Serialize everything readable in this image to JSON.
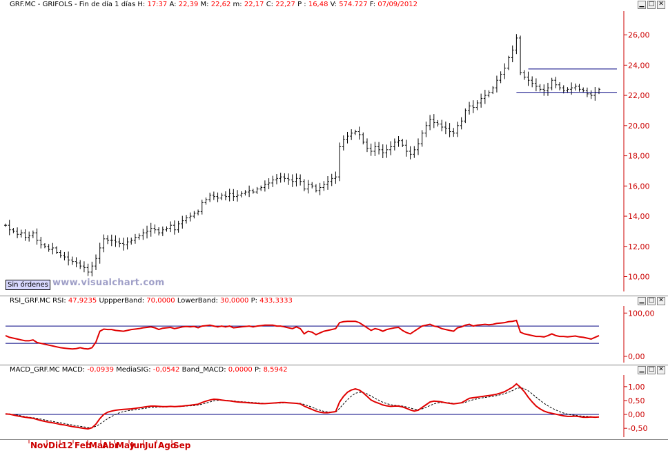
{
  "main_header": {
    "symbol": "GRF.MC - GRIFOLS - Fin de día 1 días",
    "h_label": "H:",
    "h_value": "17:37",
    "a_label": "A:",
    "a_value": "22,39",
    "m_label": "M:",
    "m_value": "22,62",
    "mi_label": "m:",
    "mi_value": "22,17",
    "c_label": "C:",
    "c_value": "22,27",
    "p_label": "P :",
    "p_value": "16,48",
    "v_label": "V:",
    "v_value": "574.727",
    "f_label": "F:",
    "f_value": "07/09/2012"
  },
  "rsi_header": {
    "name": "RSI_GRF.MC",
    "rsi_label": "RSI:",
    "rsi_value": "47,9235",
    "upper_label": "UppperBand:",
    "upper_value": "70,0000",
    "lower_label": "LowerBand:",
    "lower_value": "30,0000",
    "p_label": "P:",
    "p_value": "433,3333"
  },
  "macd_header": {
    "name": "MACD_GRF.MC",
    "macd_label": "MACD:",
    "macd_value": "-0,0939",
    "sig_label": "MediaSIG:",
    "sig_value": "-0,0542",
    "band_label": "Band_MACD:",
    "band_value": "0,0000",
    "p_label": "P:",
    "p_value": "8,5942"
  },
  "window_buttons": [
    "▁",
    "□",
    "✕"
  ],
  "status_button": "Sin órdenes",
  "watermark": "www.visualchart.com",
  "months": [
    "Nov",
    "Dic",
    "12",
    "Feb",
    "Mar",
    "Abr",
    "May",
    "Jun",
    "Jul",
    "Ago",
    "Sep"
  ],
  "colors": {
    "axis": "#cc0000",
    "rsi_line": "#e00000",
    "macd_line": "#e00000",
    "band": "#000080",
    "bars": "#000000"
  },
  "chart_data": [
    {
      "type": "ohlc",
      "title": "GRF.MC - GRIFOLS",
      "ylim": [
        9.2,
        27.4
      ],
      "yticks": [
        "10,00",
        "12,00",
        "14,00",
        "16,00",
        "18,00",
        "20,00",
        "22,00",
        "24,00",
        "26,00"
      ],
      "ytick_values": [
        10,
        12,
        14,
        16,
        18,
        20,
        22,
        24,
        26
      ],
      "close_series": [
        13.4,
        13.1,
        13.0,
        12.8,
        12.9,
        12.6,
        12.7,
        12.9,
        12.4,
        12.1,
        12.0,
        11.8,
        11.9,
        11.6,
        11.4,
        11.3,
        11.1,
        11.0,
        10.9,
        10.7,
        10.6,
        10.3,
        10.7,
        11.2,
        11.9,
        12.5,
        12.4,
        12.4,
        12.3,
        12.2,
        12.1,
        12.3,
        12.4,
        12.6,
        12.7,
        12.9,
        13.0,
        13.2,
        13.1,
        12.9,
        13.1,
        13.2,
        13.4,
        13.1,
        13.5,
        13.7,
        13.9,
        14.0,
        14.2,
        14.3,
        14.9,
        15.1,
        15.4,
        15.3,
        15.2,
        15.4,
        15.3,
        15.5,
        15.3,
        15.4,
        15.5,
        15.6,
        15.7,
        15.6,
        15.8,
        15.9,
        16.1,
        16.2,
        16.4,
        16.5,
        16.6,
        16.5,
        16.4,
        16.3,
        16.5,
        16.3,
        15.8,
        16.1,
        16.0,
        15.7,
        15.9,
        16.1,
        16.3,
        16.5,
        16.6,
        18.6,
        19.1,
        19.3,
        19.5,
        19.6,
        19.4,
        18.9,
        18.5,
        18.3,
        18.6,
        18.4,
        18.2,
        18.4,
        18.6,
        18.9,
        19.0,
        18.7,
        18.3,
        18.1,
        18.4,
        18.8,
        19.5,
        20.0,
        20.4,
        20.2,
        20.1,
        19.9,
        19.8,
        19.6,
        19.5,
        20.0,
        20.3,
        21.0,
        21.3,
        21.2,
        21.5,
        21.8,
        22.0,
        22.2,
        22.5,
        23.0,
        23.4,
        23.8,
        24.5,
        25.0,
        25.8,
        23.5,
        23.2,
        23.0,
        22.8,
        22.6,
        22.4,
        22.3,
        22.5,
        23.0,
        22.7,
        22.5,
        22.3,
        22.4,
        22.5,
        22.6,
        22.4,
        22.3,
        22.1,
        22.0,
        22.2,
        22.4
      ],
      "resistance_lines": [
        23.75,
        22.2
      ]
    },
    {
      "type": "line",
      "title": "RSI_GRF.MC",
      "ylim": [
        -8,
        110
      ],
      "yticks": [
        "100,00",
        "0,00"
      ],
      "ytick_values": [
        100,
        0
      ],
      "bands": [
        70,
        30
      ],
      "series": [
        {
          "name": "RSI",
          "values": [
            48,
            44,
            42,
            40,
            38,
            36,
            36,
            38,
            32,
            30,
            28,
            26,
            24,
            22,
            20,
            19,
            18,
            17,
            18,
            20,
            18,
            17,
            20,
            33,
            58,
            63,
            62,
            62,
            60,
            59,
            58,
            60,
            62,
            63,
            64,
            66,
            67,
            68,
            66,
            62,
            65,
            66,
            67,
            64,
            66,
            68,
            69,
            68,
            69,
            66,
            70,
            71,
            72,
            70,
            68,
            70,
            68,
            70,
            66,
            67,
            68,
            69,
            70,
            68,
            70,
            71,
            72,
            72,
            72,
            70,
            70,
            68,
            66,
            64,
            68,
            64,
            52,
            58,
            56,
            50,
            54,
            58,
            60,
            62,
            64,
            78,
            80,
            81,
            81,
            81,
            78,
            72,
            66,
            60,
            64,
            62,
            58,
            62,
            64,
            66,
            67,
            60,
            55,
            52,
            58,
            64,
            70,
            72,
            74,
            70,
            68,
            64,
            62,
            60,
            58,
            66,
            68,
            72,
            74,
            70,
            72,
            73,
            74,
            73,
            74,
            76,
            77,
            78,
            80,
            81,
            83,
            56,
            52,
            50,
            48,
            46,
            46,
            45,
            48,
            52,
            48,
            46,
            46,
            45,
            46,
            47,
            45,
            44,
            42,
            40,
            44,
            48
          ]
        }
      ]
    },
    {
      "type": "line",
      "title": "MACD_GRF.MC",
      "ylim": [
        -0.72,
        1.32
      ],
      "yticks": [
        "1,00",
        "0,50",
        "0,00",
        "-0,50"
      ],
      "ytick_values": [
        1,
        0.5,
        0,
        -0.5
      ],
      "bands": [
        0
      ],
      "series": [
        {
          "name": "MACD",
          "values": [
            0.02,
            0.01,
            -0.02,
            -0.05,
            -0.08,
            -0.1,
            -0.12,
            -0.14,
            -0.18,
            -0.22,
            -0.25,
            -0.28,
            -0.3,
            -0.33,
            -0.36,
            -0.38,
            -0.41,
            -0.44,
            -0.46,
            -0.48,
            -0.5,
            -0.52,
            -0.48,
            -0.35,
            -0.15,
            0.0,
            0.08,
            0.12,
            0.15,
            0.17,
            0.18,
            0.19,
            0.2,
            0.22,
            0.24,
            0.26,
            0.28,
            0.3,
            0.3,
            0.29,
            0.28,
            0.28,
            0.29,
            0.28,
            0.29,
            0.3,
            0.32,
            0.33,
            0.35,
            0.37,
            0.43,
            0.48,
            0.52,
            0.55,
            0.54,
            0.52,
            0.5,
            0.49,
            0.47,
            0.45,
            0.44,
            0.43,
            0.42,
            0.41,
            0.4,
            0.39,
            0.39,
            0.4,
            0.41,
            0.42,
            0.43,
            0.43,
            0.42,
            0.41,
            0.4,
            0.38,
            0.3,
            0.24,
            0.18,
            0.12,
            0.08,
            0.06,
            0.06,
            0.08,
            0.1,
            0.45,
            0.65,
            0.8,
            0.88,
            0.92,
            0.88,
            0.78,
            0.65,
            0.52,
            0.45,
            0.4,
            0.34,
            0.31,
            0.29,
            0.3,
            0.3,
            0.27,
            0.22,
            0.16,
            0.12,
            0.15,
            0.25,
            0.35,
            0.45,
            0.48,
            0.47,
            0.45,
            0.42,
            0.4,
            0.38,
            0.4,
            0.42,
            0.5,
            0.58,
            0.6,
            0.62,
            0.64,
            0.66,
            0.68,
            0.7,
            0.73,
            0.77,
            0.82,
            0.9,
            0.98,
            1.1,
            0.98,
            0.82,
            0.62,
            0.45,
            0.3,
            0.2,
            0.12,
            0.07,
            0.04,
            0.01,
            -0.02,
            -0.05,
            -0.07,
            -0.07,
            -0.06,
            -0.08,
            -0.1,
            -0.1,
            -0.09,
            -0.1,
            -0.09
          ]
        },
        {
          "name": "MediaSIG",
          "values": [
            0.03,
            0.02,
            0.0,
            -0.02,
            -0.05,
            -0.08,
            -0.1,
            -0.12,
            -0.14,
            -0.17,
            -0.2,
            -0.22,
            -0.25,
            -0.28,
            -0.3,
            -0.33,
            -0.36,
            -0.38,
            -0.41,
            -0.43,
            -0.45,
            -0.47,
            -0.47,
            -0.43,
            -0.35,
            -0.25,
            -0.15,
            -0.07,
            0.0,
            0.06,
            0.1,
            0.13,
            0.15,
            0.17,
            0.19,
            0.21,
            0.23,
            0.25,
            0.26,
            0.27,
            0.27,
            0.27,
            0.28,
            0.28,
            0.28,
            0.29,
            0.3,
            0.31,
            0.32,
            0.34,
            0.37,
            0.41,
            0.45,
            0.49,
            0.51,
            0.52,
            0.51,
            0.5,
            0.49,
            0.47,
            0.46,
            0.45,
            0.44,
            0.43,
            0.42,
            0.41,
            0.4,
            0.4,
            0.4,
            0.41,
            0.41,
            0.42,
            0.42,
            0.41,
            0.41,
            0.4,
            0.36,
            0.31,
            0.26,
            0.2,
            0.15,
            0.11,
            0.09,
            0.08,
            0.08,
            0.22,
            0.38,
            0.53,
            0.66,
            0.76,
            0.8,
            0.79,
            0.74,
            0.66,
            0.58,
            0.51,
            0.44,
            0.39,
            0.35,
            0.33,
            0.32,
            0.3,
            0.27,
            0.23,
            0.19,
            0.18,
            0.2,
            0.25,
            0.32,
            0.38,
            0.42,
            0.43,
            0.43,
            0.42,
            0.4,
            0.4,
            0.41,
            0.44,
            0.49,
            0.53,
            0.56,
            0.59,
            0.61,
            0.63,
            0.65,
            0.68,
            0.71,
            0.75,
            0.8,
            0.86,
            0.94,
            0.96,
            0.93,
            0.85,
            0.74,
            0.62,
            0.51,
            0.4,
            0.31,
            0.23,
            0.16,
            0.1,
            0.05,
            0.01,
            -0.02,
            -0.03,
            -0.05,
            -0.06,
            -0.07,
            -0.08,
            -0.09,
            -0.09
          ]
        }
      ]
    }
  ]
}
